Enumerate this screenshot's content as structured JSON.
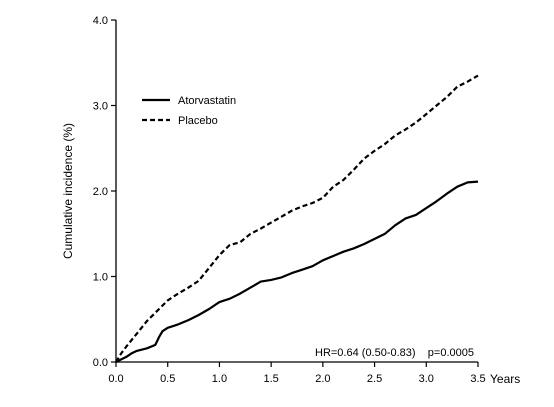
{
  "chart_data": {
    "type": "line",
    "title": "",
    "xlabel": "Years",
    "ylabel": "Cumulative incidence (%)",
    "xlim": [
      0,
      3.5
    ],
    "ylim": [
      0,
      4.0
    ],
    "x_ticks": [
      "0.0",
      "0.5",
      "1.0",
      "1.5",
      "2.0",
      "2.5",
      "3.0",
      "3.5"
    ],
    "x_tick_values": [
      0,
      0.5,
      1.0,
      1.5,
      2.0,
      2.5,
      3.0,
      3.5
    ],
    "y_ticks": [
      "0.0",
      "1.0",
      "2.0",
      "3.0",
      "4.0"
    ],
    "y_tick_values": [
      0,
      1,
      2,
      3,
      4
    ],
    "grid": false,
    "legend_position": "top-left",
    "annotation": "HR=0.64 (0.50-0.83)    p=0.0005",
    "series": [
      {
        "name": "Atorvastatin",
        "style": "solid",
        "color": "#000000",
        "x": [
          0,
          0.05,
          0.1,
          0.15,
          0.2,
          0.3,
          0.38,
          0.42,
          0.45,
          0.5,
          0.6,
          0.7,
          0.8,
          0.9,
          1.0,
          1.1,
          1.2,
          1.3,
          1.4,
          1.5,
          1.6,
          1.7,
          1.8,
          1.9,
          2.0,
          2.1,
          2.2,
          2.3,
          2.4,
          2.5,
          2.6,
          2.7,
          2.8,
          2.9,
          3.0,
          3.1,
          3.2,
          3.3,
          3.4,
          3.5
        ],
        "y": [
          0,
          0.03,
          0.06,
          0.1,
          0.13,
          0.16,
          0.2,
          0.3,
          0.36,
          0.4,
          0.44,
          0.49,
          0.55,
          0.62,
          0.7,
          0.74,
          0.8,
          0.87,
          0.94,
          0.96,
          0.99,
          1.04,
          1.08,
          1.12,
          1.19,
          1.24,
          1.29,
          1.33,
          1.38,
          1.44,
          1.5,
          1.6,
          1.68,
          1.72,
          1.8,
          1.88,
          1.97,
          2.05,
          2.1,
          2.11
        ]
      },
      {
        "name": "Placebo",
        "style": "dashed",
        "color": "#000000",
        "x": [
          0,
          0.05,
          0.1,
          0.2,
          0.3,
          0.4,
          0.5,
          0.6,
          0.7,
          0.8,
          0.9,
          1.0,
          1.1,
          1.2,
          1.3,
          1.4,
          1.5,
          1.6,
          1.7,
          1.8,
          1.9,
          2.0,
          2.1,
          2.2,
          2.3,
          2.4,
          2.5,
          2.6,
          2.7,
          2.8,
          2.9,
          3.0,
          3.1,
          3.2,
          3.3,
          3.4,
          3.5
        ],
        "y": [
          0,
          0.1,
          0.18,
          0.33,
          0.48,
          0.6,
          0.72,
          0.8,
          0.87,
          0.95,
          1.1,
          1.25,
          1.37,
          1.4,
          1.5,
          1.56,
          1.63,
          1.7,
          1.77,
          1.82,
          1.86,
          1.92,
          2.05,
          2.13,
          2.25,
          2.38,
          2.47,
          2.55,
          2.65,
          2.72,
          2.8,
          2.9,
          3.0,
          3.1,
          3.22,
          3.28,
          3.35
        ]
      }
    ]
  }
}
